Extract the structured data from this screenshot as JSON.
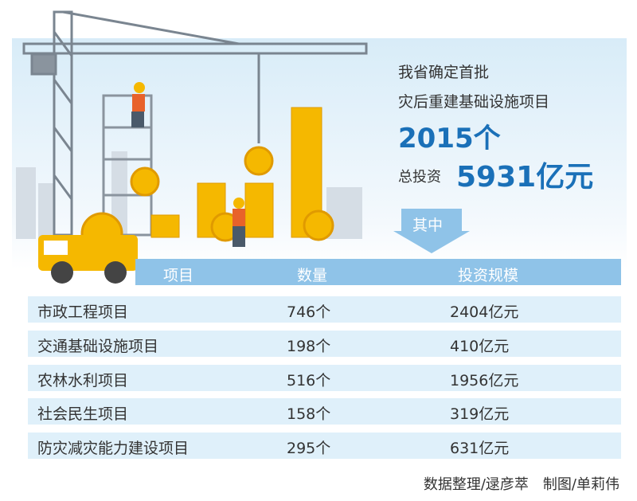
{
  "headline": {
    "line1": "我省确定首批",
    "line2": "灾后重建基础设施项目",
    "count": "2015个",
    "invest_label": "总投资",
    "invest_value": "5931亿元"
  },
  "arrow_label": "其中",
  "table": {
    "headers": [
      "项目",
      "数量",
      "投资规模"
    ],
    "rows": [
      {
        "name": "市政工程项目",
        "count": "746个",
        "amount": "2404亿元"
      },
      {
        "name": "交通基础设施项目",
        "count": "198个",
        "amount": "410亿元"
      },
      {
        "name": "农林水利项目",
        "count": "516个",
        "amount": "1956亿元"
      },
      {
        "name": "社会民生项目",
        "count": "158个",
        "amount": "319亿元"
      },
      {
        "name": "防灾减灾能力建设项目",
        "count": "295个",
        "amount": "631亿元"
      }
    ]
  },
  "footer": "数据整理/逯彦萃　制图/单莉伟",
  "colors": {
    "accent": "#1a70b8",
    "header_bg": "#8fc3e8",
    "row_bg": "#dff0fa",
    "coin": "#f5b800"
  }
}
